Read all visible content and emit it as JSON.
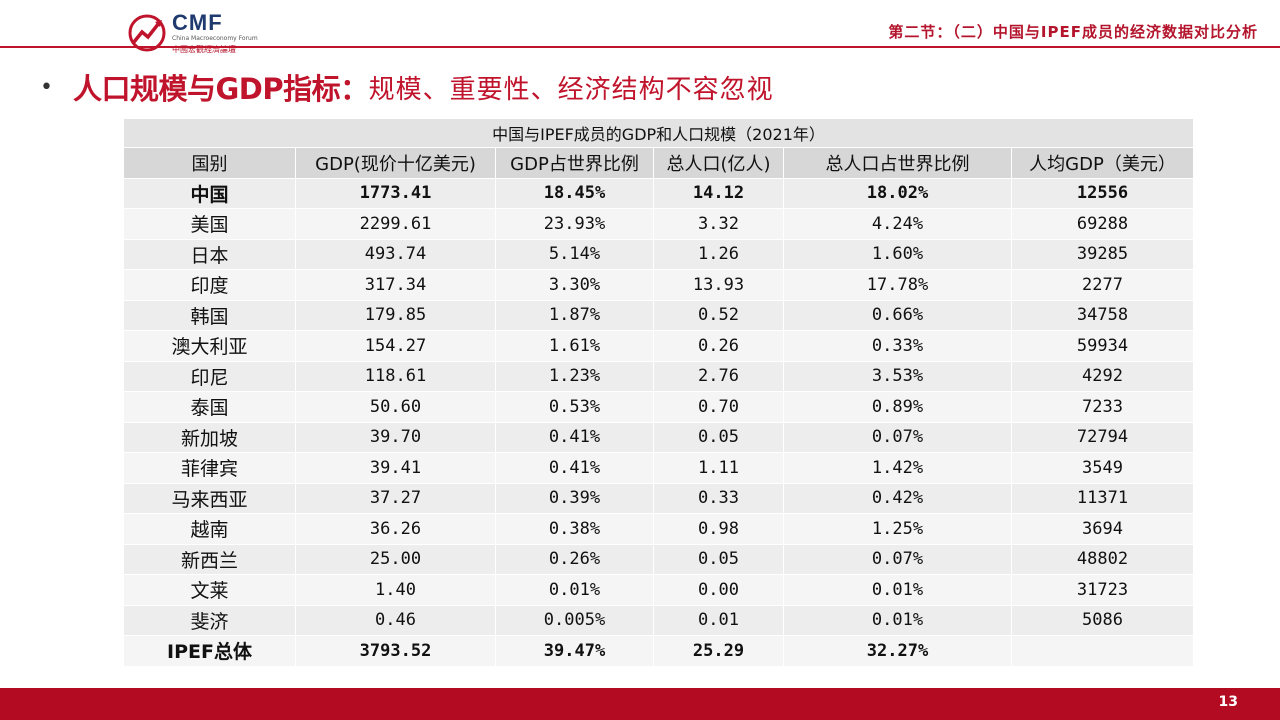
{
  "header": {
    "logo_text": "CMF",
    "logo_subtitle": "China Macroeconomy Forum",
    "logo_chinese": "中國宏觀經濟論壇",
    "section_title": "第二节：（二）中国与IPEF成员的经济数据对比分析"
  },
  "slide": {
    "heading_main": "人口规模与GDP指标：",
    "heading_sub": "规模、重要性、经济结构不容忽视"
  },
  "table": {
    "caption": "中国与IPEF成员的GDP和人口规模（2021年）",
    "columns": [
      "国别",
      "GDP(现价十亿美元)",
      "GDP占世界比例",
      "总人口(亿人)",
      "总人口占世界比例",
      "人均GDP（美元）"
    ],
    "rows": [
      [
        "中国",
        "1773.41",
        "18.45%",
        "14.12",
        "18.02%",
        "12556"
      ],
      [
        "美国",
        "2299.61",
        "23.93%",
        "3.32",
        "4.24%",
        "69288"
      ],
      [
        "日本",
        "493.74",
        "5.14%",
        "1.26",
        "1.60%",
        "39285"
      ],
      [
        "印度",
        "317.34",
        "3.30%",
        "13.93",
        "17.78%",
        "2277"
      ],
      [
        "韩国",
        "179.85",
        "1.87%",
        "0.52",
        "0.66%",
        "34758"
      ],
      [
        "澳大利亚",
        "154.27",
        "1.61%",
        "0.26",
        "0.33%",
        "59934"
      ],
      [
        "印尼",
        "118.61",
        "1.23%",
        "2.76",
        "3.53%",
        "4292"
      ],
      [
        "泰国",
        "50.60",
        "0.53%",
        "0.70",
        "0.89%",
        "7233"
      ],
      [
        "新加坡",
        "39.70",
        "0.41%",
        "0.05",
        "0.07%",
        "72794"
      ],
      [
        "菲律宾",
        "39.41",
        "0.41%",
        "1.11",
        "1.42%",
        "3549"
      ],
      [
        "马来西亚",
        "37.27",
        "0.39%",
        "0.33",
        "0.42%",
        "11371"
      ],
      [
        "越南",
        "36.26",
        "0.38%",
        "0.98",
        "1.25%",
        "3694"
      ],
      [
        "新西兰",
        "25.00",
        "0.26%",
        "0.05",
        "0.07%",
        "48802"
      ],
      [
        "文莱",
        "1.40",
        "0.01%",
        "0.00",
        "0.01%",
        "31723"
      ],
      [
        "斐济",
        "0.46",
        "0.005%",
        "0.01",
        "0.01%",
        "5086"
      ],
      [
        "IPEF总体",
        "3793.52",
        "39.47%",
        "25.29",
        "32.27%",
        ""
      ]
    ],
    "bold_rows": [
      0,
      15
    ]
  },
  "footer": {
    "page_number": "13"
  },
  "colors": {
    "accent": "#c0142c",
    "footer": "#b30b22",
    "logo_blue": "#1f3a6e"
  }
}
